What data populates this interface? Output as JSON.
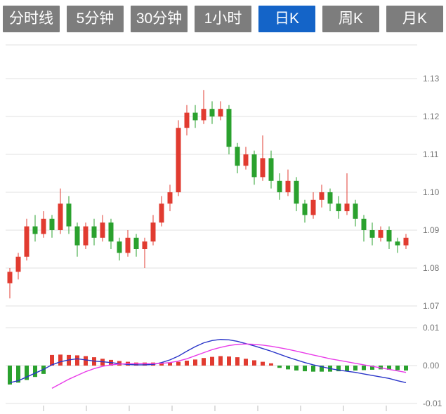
{
  "toolbar": {
    "items": [
      {
        "label": "分时线"
      },
      {
        "label": "5分钟"
      },
      {
        "label": "30分钟"
      },
      {
        "label": "1小时"
      },
      {
        "label": "日K"
      },
      {
        "label": "周K"
      },
      {
        "label": "月K"
      }
    ],
    "selected_index": 4,
    "selected_color": "#1464c8",
    "button_color": "#7d7d7d"
  },
  "chart_data": {
    "type": "candlestick+macd",
    "title": "",
    "legend_position": "none",
    "grid": true,
    "price_axis": {
      "ticks": [
        "1.13",
        "1.12",
        "1.11",
        "1.10",
        "1.09",
        "1.08",
        "1.07"
      ],
      "values": [
        1.13,
        1.12,
        1.11,
        1.1,
        1.09,
        1.08,
        1.07
      ],
      "range": [
        1.07,
        1.13
      ]
    },
    "candle_format": [
      "open",
      "close",
      "low",
      "high"
    ],
    "candles": [
      [
        1.076,
        1.079,
        1.072,
        1.08
      ],
      [
        1.079,
        1.083,
        1.077,
        1.084
      ],
      [
        1.083,
        1.091,
        1.082,
        1.093
      ],
      [
        1.091,
        1.089,
        1.087,
        1.094
      ],
      [
        1.089,
        1.093,
        1.088,
        1.095
      ],
      [
        1.093,
        1.09,
        1.088,
        1.094
      ],
      [
        1.09,
        1.097,
        1.089,
        1.101
      ],
      [
        1.097,
        1.091,
        1.089,
        1.099
      ],
      [
        1.091,
        1.086,
        1.083,
        1.092
      ],
      [
        1.086,
        1.091,
        1.085,
        1.092
      ],
      [
        1.091,
        1.088,
        1.086,
        1.093
      ],
      [
        1.088,
        1.092,
        1.087,
        1.094
      ],
      [
        1.092,
        1.087,
        1.085,
        1.093
      ],
      [
        1.087,
        1.084,
        1.082,
        1.088
      ],
      [
        1.084,
        1.088,
        1.083,
        1.09
      ],
      [
        1.088,
        1.085,
        1.083,
        1.089
      ],
      [
        1.085,
        1.087,
        1.08,
        1.088
      ],
      [
        1.087,
        1.092,
        1.086,
        1.094
      ],
      [
        1.092,
        1.097,
        1.091,
        1.099
      ],
      [
        1.097,
        1.1,
        1.095,
        1.102
      ],
      [
        1.1,
        1.117,
        1.099,
        1.119
      ],
      [
        1.117,
        1.121,
        1.115,
        1.123
      ],
      [
        1.121,
        1.119,
        1.117,
        1.123
      ],
      [
        1.119,
        1.122,
        1.118,
        1.127
      ],
      [
        1.122,
        1.12,
        1.118,
        1.124
      ],
      [
        1.12,
        1.122,
        1.119,
        1.124
      ],
      [
        1.122,
        1.112,
        1.11,
        1.123
      ],
      [
        1.112,
        1.107,
        1.105,
        1.113
      ],
      [
        1.107,
        1.11,
        1.106,
        1.112
      ],
      [
        1.11,
        1.104,
        1.102,
        1.111
      ],
      [
        1.104,
        1.109,
        1.103,
        1.115
      ],
      [
        1.109,
        1.103,
        1.101,
        1.111
      ],
      [
        1.103,
        1.1,
        1.098,
        1.105
      ],
      [
        1.1,
        1.103,
        1.099,
        1.106
      ],
      [
        1.103,
        1.097,
        1.095,
        1.104
      ],
      [
        1.097,
        1.094,
        1.092,
        1.098
      ],
      [
        1.094,
        1.098,
        1.093,
        1.1
      ],
      [
        1.098,
        1.1,
        1.096,
        1.102
      ],
      [
        1.1,
        1.097,
        1.095,
        1.101
      ],
      [
        1.097,
        1.095,
        1.093,
        1.099
      ],
      [
        1.095,
        1.097,
        1.094,
        1.105
      ],
      [
        1.097,
        1.093,
        1.091,
        1.098
      ],
      [
        1.093,
        1.09,
        1.087,
        1.094
      ],
      [
        1.09,
        1.088,
        1.086,
        1.092
      ],
      [
        1.088,
        1.09,
        1.087,
        1.091
      ],
      [
        1.09,
        1.087,
        1.085,
        1.091
      ],
      [
        1.087,
        1.086,
        1.084,
        1.088
      ],
      [
        1.086,
        1.088,
        1.085,
        1.089
      ]
    ],
    "macd": {
      "axis_ticks": [
        "0.01",
        "0.00",
        "-0.01"
      ],
      "axis_values": [
        0.01,
        0.0,
        -0.01
      ],
      "range": [
        -0.01,
        0.01
      ],
      "hist": [
        -0.005,
        -0.0045,
        -0.0038,
        -0.003,
        -0.0022,
        0.0028,
        0.0029,
        0.0028,
        0.0027,
        0.0025,
        0.0022,
        0.0018,
        0.0015,
        0.0012,
        0.001,
        0.0008,
        0.0008,
        0.0008,
        0.0008,
        0.0008,
        0.001,
        0.0013,
        0.0016,
        0.002,
        0.0023,
        0.0025,
        0.0024,
        0.0022,
        0.0018,
        0.0014,
        0.001,
        0.0006,
        -0.0006,
        -0.001,
        -0.0013,
        -0.0015,
        -0.0016,
        -0.0016,
        -0.0016,
        -0.0015,
        -0.0014,
        -0.0013,
        -0.0012,
        -0.0011,
        -0.001,
        -0.0011,
        -0.0012,
        -0.0013
      ],
      "dif": [
        -0.0045,
        -0.004,
        -0.003,
        -0.002,
        -0.001,
        0.0002,
        0.001,
        0.0015,
        0.0018,
        0.0015,
        0.0012,
        0.001,
        0.0008,
        0.0005,
        0.0003,
        0.0002,
        0.0002,
        0.0003,
        0.0008,
        0.0015,
        0.0025,
        0.0038,
        0.005,
        0.006,
        0.0066,
        0.0069,
        0.0068,
        0.0064,
        0.0058,
        0.0052,
        0.0045,
        0.0038,
        0.003,
        0.0022,
        0.0015,
        0.0008,
        0.0002,
        -0.0003,
        -0.0008,
        -0.0012,
        -0.0015,
        -0.0018,
        -0.0022,
        -0.0026,
        -0.003,
        -0.0034,
        -0.004,
        -0.0045
      ],
      "dea": [
        null,
        null,
        null,
        null,
        null,
        -0.006,
        -0.0048,
        -0.0036,
        -0.0026,
        -0.0016,
        -0.0008,
        -0.0002,
        0.0002,
        0.0004,
        0.0005,
        0.0005,
        0.0005,
        0.0005,
        0.0006,
        0.0008,
        0.0012,
        0.0018,
        0.0026,
        0.0034,
        0.0042,
        0.0048,
        0.0053,
        0.0056,
        0.0057,
        0.0056,
        0.0054,
        0.0051,
        0.0047,
        0.0043,
        0.0038,
        0.0033,
        0.0028,
        0.0023,
        0.0018,
        0.0014,
        0.001,
        0.0006,
        0.0002,
        -0.0002,
        -0.0006,
        -0.001,
        -0.0014,
        -0.0018
      ]
    },
    "colors": {
      "up": "#e13b30",
      "down": "#2aa12e",
      "dif_line": "#2a35c9",
      "dea_line": "#e93ce9",
      "grid": "#e0e0e0",
      "axis_text": "#777777",
      "tick_mark": "#bbbbbb"
    }
  }
}
